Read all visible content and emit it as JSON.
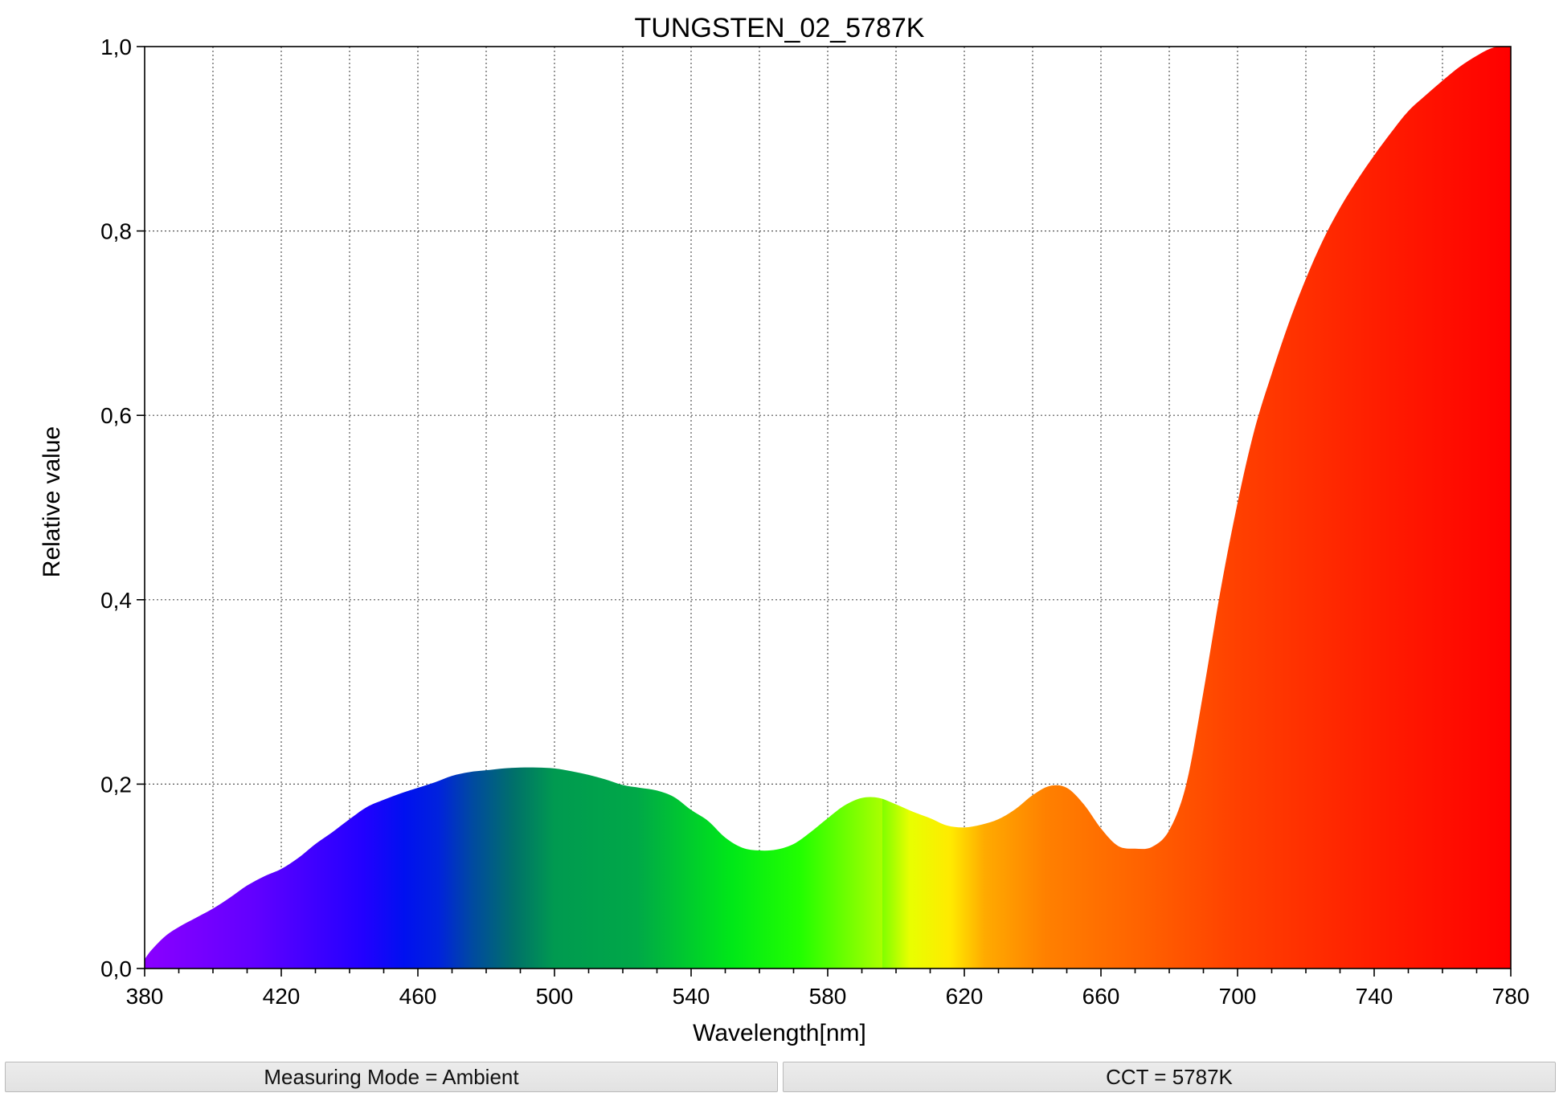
{
  "chart_data": {
    "type": "area",
    "title": "TUNGSTEN_02_5787K",
    "xlabel": "Wavelength[nm]",
    "ylabel": "Relative value",
    "xlim": [
      380,
      780
    ],
    "ylim": [
      0,
      1.0
    ],
    "x_ticks": [
      380,
      420,
      460,
      500,
      540,
      580,
      620,
      660,
      700,
      740,
      780
    ],
    "x_tick_labels": [
      "380",
      "420",
      "460",
      "500",
      "540",
      "580",
      "620",
      "660",
      "700",
      "740",
      "780"
    ],
    "y_ticks": [
      0,
      0.2,
      0.4,
      0.6,
      0.8,
      1.0
    ],
    "y_tick_labels": [
      "0,0",
      "0,2",
      "0,4",
      "0,6",
      "0,8",
      "1,0"
    ],
    "grid": true,
    "fill": "visible-spectrum gradient",
    "series": [
      {
        "x": [
          380,
          382,
          386,
          390,
          395,
          400,
          405,
          410,
          415,
          420,
          425,
          430,
          435,
          440,
          445,
          450,
          455,
          460,
          465,
          470,
          475,
          480,
          485,
          490,
          495,
          500,
          505,
          510,
          515,
          520,
          525,
          530,
          535,
          540,
          545,
          550,
          555,
          560,
          565,
          570,
          575,
          580,
          585,
          590,
          595,
          600,
          605,
          610,
          615,
          620,
          625,
          630,
          635,
          640,
          645,
          650,
          655,
          660,
          665,
          670,
          675,
          680,
          685,
          690,
          695,
          700,
          705,
          710,
          715,
          720,
          725,
          730,
          735,
          740,
          745,
          750,
          755,
          760,
          765,
          770,
          775,
          780
        ],
        "y": [
          0.01,
          0.02,
          0.035,
          0.045,
          0.055,
          0.065,
          0.077,
          0.09,
          0.1,
          0.108,
          0.12,
          0.135,
          0.148,
          0.162,
          0.175,
          0.183,
          0.19,
          0.196,
          0.202,
          0.209,
          0.213,
          0.215,
          0.217,
          0.218,
          0.218,
          0.217,
          0.214,
          0.21,
          0.205,
          0.199,
          0.196,
          0.193,
          0.186,
          0.172,
          0.16,
          0.142,
          0.131,
          0.128,
          0.129,
          0.135,
          0.148,
          0.163,
          0.177,
          0.185,
          0.185,
          0.178,
          0.17,
          0.163,
          0.155,
          0.153,
          0.156,
          0.162,
          0.173,
          0.188,
          0.198,
          0.196,
          0.178,
          0.152,
          0.133,
          0.13,
          0.132,
          0.15,
          0.2,
          0.3,
          0.41,
          0.505,
          0.585,
          0.645,
          0.7,
          0.748,
          0.79,
          0.825,
          0.855,
          0.882,
          0.907,
          0.93,
          0.947,
          0.963,
          0.978,
          0.99,
          0.999,
          1.0
        ]
      }
    ]
  },
  "status": {
    "measuring_mode": "Measuring Mode = Ambient",
    "cct": "CCT = 5787K"
  }
}
